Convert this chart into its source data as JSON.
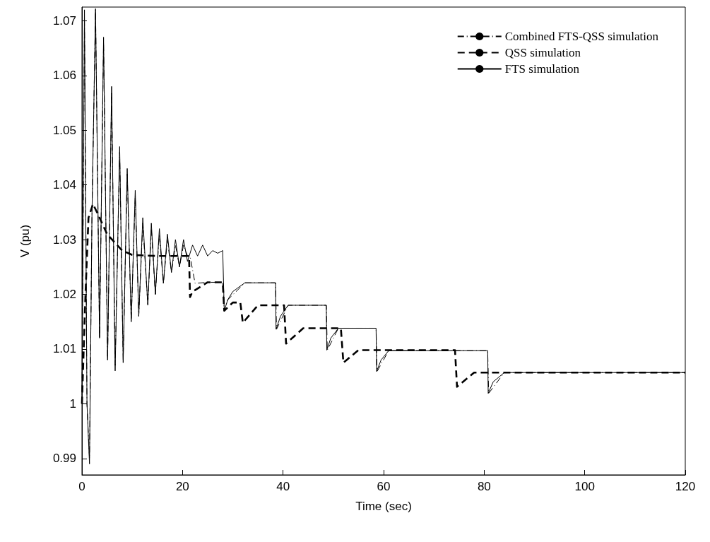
{
  "chart_data": {
    "type": "line",
    "xlabel": "Time (sec)",
    "ylabel": "V (pu)",
    "xlim": [
      0,
      120
    ],
    "ylim": [
      0.987,
      1.0725
    ],
    "xticks": [
      0,
      20,
      40,
      60,
      80,
      100,
      120
    ],
    "yticks": [
      0.99,
      1,
      1.01,
      1.02,
      1.03,
      1.04,
      1.05,
      1.06,
      1.07
    ],
    "grid": false,
    "legend": "top right",
    "marker": "none",
    "series": [
      {
        "name": "Combined FTS-QSS simulation",
        "color": "#000000",
        "line_style": "dashdot",
        "x": [
          0,
          0.5,
          1,
          1.5,
          2,
          2.7,
          3.5,
          4.3,
          5.1,
          5.9,
          6.6,
          7.5,
          8.2,
          9,
          9.8,
          10.6,
          11.3,
          12.1,
          13.1,
          13.8,
          14.6,
          15.4,
          16.2,
          17,
          17.8,
          18.6,
          19.4,
          20.2,
          21,
          21.5,
          22.5,
          25,
          28,
          28.3,
          29,
          32.4,
          38.5,
          38.7,
          41,
          48.6,
          48.8,
          51,
          58.5,
          58.7,
          61,
          80.7,
          80.9,
          84,
          120
        ],
        "values": [
          1,
          1.07,
          1,
          0.99,
          1.035,
          1.072,
          1.012,
          1.066,
          1.008,
          1.057,
          1.007,
          1.046,
          1.008,
          1.042,
          1.015,
          1.038,
          1.016,
          1.033,
          1.018,
          1.032,
          1.02,
          1.031,
          1.022,
          1.03,
          1.024,
          1.029,
          1.025,
          1.029,
          1.027,
          1.027,
          1.022,
          1.0222,
          1.0222,
          1.017,
          1.019,
          1.0221,
          1.0221,
          1.0136,
          1.018,
          1.018,
          1.0098,
          1.0138,
          1.0138,
          1.0059,
          1.0097,
          1.0097,
          1.0019,
          1.0057,
          1.0057
        ]
      },
      {
        "name": "QSS simulation",
        "color": "#000000",
        "line_style": "dashed",
        "x": [
          0,
          0.7,
          1.3,
          2.2,
          3.5,
          5,
          8,
          10,
          15,
          21.3,
          21.5,
          22,
          25,
          28,
          28.3,
          30,
          31.5,
          32,
          35,
          38.5,
          40.2,
          40.6,
          44,
          48.6,
          51.5,
          52,
          55,
          74.2,
          74.6,
          78,
          120
        ],
        "values": [
          1,
          1.02,
          1.034,
          1.0365,
          1.034,
          1.031,
          1.028,
          1.0272,
          1.027,
          1.027,
          1.0195,
          1.0205,
          1.0222,
          1.0222,
          1.017,
          1.0185,
          1.0185,
          1.0148,
          1.018,
          1.018,
          1.018,
          1.011,
          1.0138,
          1.0138,
          1.0138,
          1.0075,
          1.0098,
          1.0098,
          1.0031,
          1.0057,
          1.0057
        ]
      },
      {
        "name": "FTS simulation",
        "color": "#000000",
        "line_style": "solid",
        "x": [
          0,
          0.5,
          1,
          1.5,
          2,
          2.7,
          3.5,
          4.3,
          5.1,
          5.9,
          6.6,
          7.5,
          8.2,
          9,
          9.8,
          10.6,
          11.3,
          12.1,
          13.1,
          13.8,
          14.6,
          15.4,
          16.2,
          17,
          17.8,
          18.6,
          19.4,
          20.2,
          21,
          22,
          23,
          24,
          25,
          26,
          27,
          28,
          28.3,
          29,
          30,
          32.4,
          38.5,
          38.6,
          39.5,
          41,
          48.6,
          48.7,
          49.5,
          51,
          58.5,
          58.6,
          59.5,
          61,
          80.7,
          80.8,
          81.8,
          84,
          120
        ],
        "values": [
          1,
          1.072,
          1,
          0.989,
          1.035,
          1.0722,
          1.012,
          1.067,
          1.008,
          1.058,
          1.006,
          1.047,
          1.0075,
          1.043,
          1.015,
          1.039,
          1.016,
          1.034,
          1.018,
          1.033,
          1.02,
          1.032,
          1.022,
          1.031,
          1.024,
          1.03,
          1.025,
          1.03,
          1.026,
          1.029,
          1.027,
          1.029,
          1.027,
          1.028,
          1.0275,
          1.028,
          1.017,
          1.019,
          1.0205,
          1.0221,
          1.0221,
          1.0136,
          1.016,
          1.018,
          1.018,
          1.0098,
          1.012,
          1.0138,
          1.0138,
          1.0059,
          1.008,
          1.0097,
          1.0097,
          1.0019,
          1.004,
          1.0057,
          1.0057
        ]
      }
    ]
  }
}
